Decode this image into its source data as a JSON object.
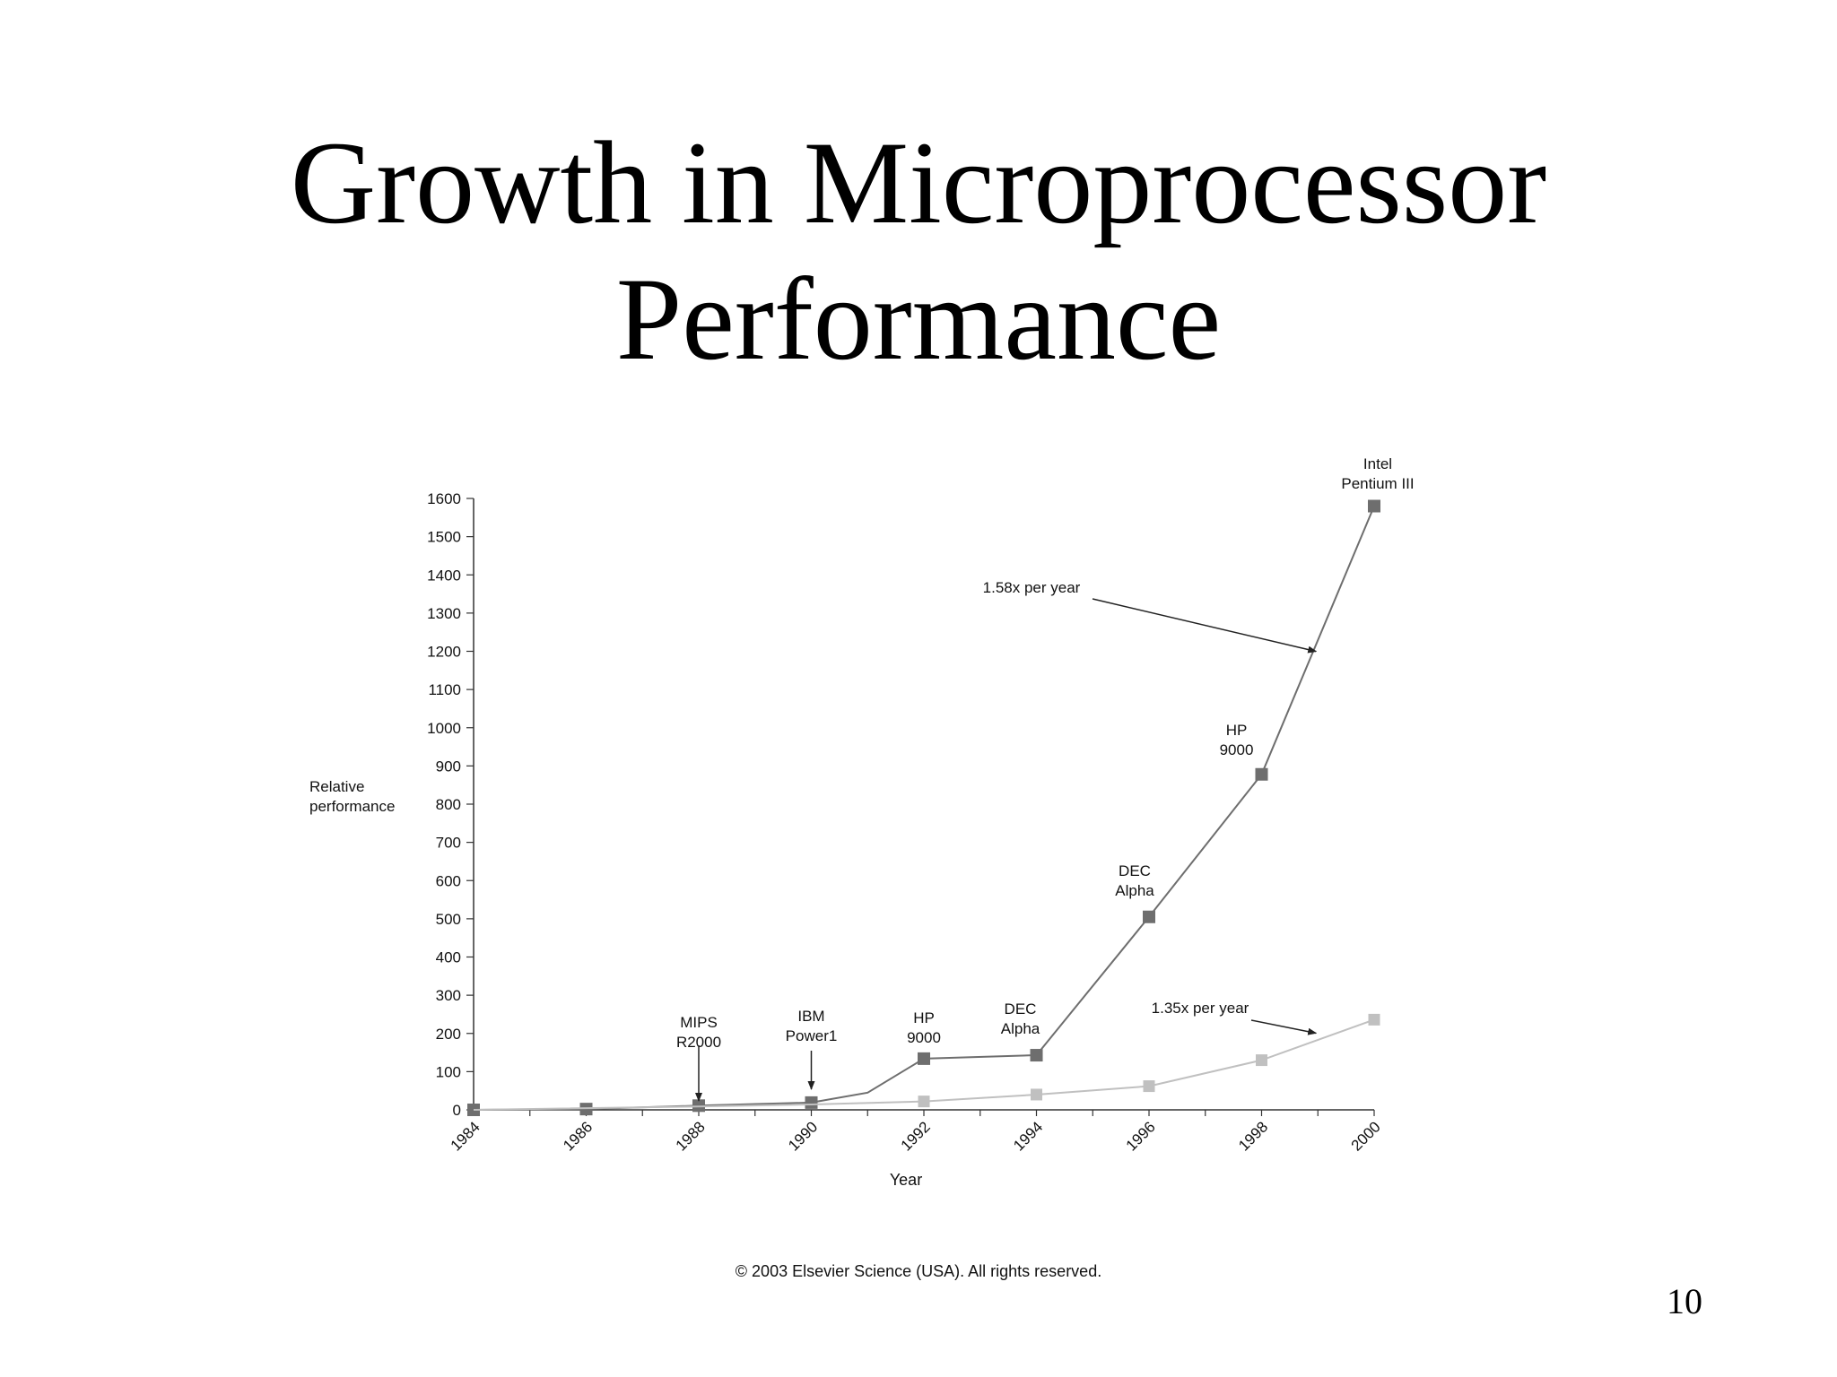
{
  "slide": {
    "title_line1": "Growth in Microprocessor",
    "title_line2": "Performance",
    "copyright": "© 2003 Elsevier Science (USA). All rights reserved.",
    "page_number": "10"
  },
  "chart_data": {
    "type": "line",
    "title": "",
    "xlabel": "Year",
    "ylabel": "Relative\nperformance",
    "xlim": [
      1984,
      2000
    ],
    "ylim": [
      0,
      1600
    ],
    "x_ticks": [
      1984,
      1986,
      1988,
      1990,
      1992,
      1994,
      1996,
      1998,
      2000
    ],
    "y_ticks": [
      0,
      100,
      200,
      300,
      400,
      500,
      600,
      700,
      800,
      900,
      1000,
      1100,
      1200,
      1300,
      1400,
      1500,
      1600
    ],
    "grid": false,
    "colors": {
      "series_1": "#6e6e6e",
      "series_2": "#c0c0c0",
      "axis": "#333333"
    },
    "series": [
      {
        "line": [
          [
            1984,
            0
          ],
          [
            1986,
            2
          ],
          [
            1988,
            11
          ],
          [
            1990,
            19
          ],
          [
            1991,
            45
          ],
          [
            1992,
            134
          ],
          [
            1994,
            143
          ],
          [
            1996,
            505
          ],
          [
            1998,
            878
          ],
          [
            2000,
            1580
          ]
        ],
        "points": [
          {
            "x": 1984,
            "y": 0
          },
          {
            "x": 1986,
            "y": 2
          },
          {
            "x": 1988,
            "y": 11
          },
          {
            "x": 1990,
            "y": 19
          },
          {
            "x": 1992,
            "y": 134
          },
          {
            "x": 1994,
            "y": 143
          },
          {
            "x": 1996,
            "y": 505
          },
          {
            "x": 1998,
            "y": 878
          },
          {
            "x": 2000,
            "y": 1580
          }
        ]
      },
      {
        "line": [
          [
            1984,
            0
          ],
          [
            1988,
            9
          ],
          [
            1990,
            14
          ],
          [
            1992,
            22
          ],
          [
            1994,
            40
          ],
          [
            1996,
            62
          ],
          [
            1998,
            130
          ],
          [
            2000,
            236
          ]
        ],
        "points": [
          {
            "x": 1992,
            "y": 22
          },
          {
            "x": 1994,
            "y": 40
          },
          {
            "x": 1996,
            "y": 62
          },
          {
            "x": 1998,
            "y": 130
          },
          {
            "x": 2000,
            "y": 236
          }
        ]
      }
    ],
    "annotations": [
      {
        "text": "MIPS\nR2000",
        "x": 1988,
        "y": 11,
        "arrow": true
      },
      {
        "text": "IBM\nPower1",
        "x": 1990,
        "y": 19,
        "arrow": true
      },
      {
        "text": "HP\n9000",
        "x": 1992,
        "y": 134
      },
      {
        "text": "DEC\nAlpha",
        "x": 1994,
        "y": 143
      },
      {
        "text": "DEC\nAlpha",
        "x": 1996,
        "y": 505
      },
      {
        "text": "HP\n9000",
        "x": 1998,
        "y": 878
      },
      {
        "text": "Intel\nPentium III",
        "x": 2000,
        "y": 1580
      },
      {
        "text": "1.58x per year",
        "target": [
          1999,
          1195
        ]
      },
      {
        "text": "1.35x per year",
        "target": [
          1999,
          196
        ]
      }
    ]
  }
}
